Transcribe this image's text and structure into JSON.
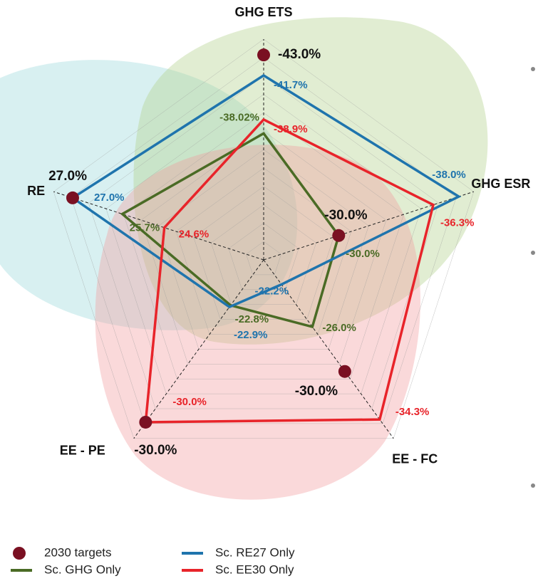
{
  "chart_data": {
    "type": "radar",
    "axes": [
      {
        "label": "GHG ETS",
        "lim": [
          -30,
          -44
        ]
      },
      {
        "label": "GHG ESR",
        "lim": [
          -25,
          -39
        ]
      },
      {
        "label": "EE - FC",
        "lim": [
          -20,
          -36
        ]
      },
      {
        "label": "EE - PE",
        "lim": [
          -20,
          -31
        ]
      },
      {
        "label": "RE",
        "lim": [
          22,
          27.5
        ]
      }
    ],
    "series": [
      {
        "name": "2030 targets",
        "color": "#7a1022",
        "style": "markers",
        "values": [
          -43.0,
          -30.0,
          -30.0,
          -30.0,
          27.0
        ],
        "value_labels": [
          "-43.0%",
          "-30.0%",
          "-30.0%",
          "-30.0%",
          "27.0%"
        ]
      },
      {
        "name": "Sc. GHG Only",
        "color": "#4a6b25",
        "style": "line",
        "values": [
          -38.02,
          -30.0,
          -26.0,
          -22.8,
          25.7
        ],
        "value_labels": [
          "-38.02%",
          "-30.0%",
          "-26.0%",
          "-22.8%",
          "25.7%"
        ]
      },
      {
        "name": "Sc. RE27 Only",
        "color": "#1f74ad",
        "style": "line",
        "values": [
          -41.7,
          -38.0,
          -22.2,
          -22.9,
          27.0
        ],
        "value_labels": [
          "-41.7%",
          "-38.0%",
          "-22.2%",
          "-22.9%",
          "27.0%"
        ]
      },
      {
        "name": "Sc. EE30 Only",
        "color": "#e8242a",
        "style": "line",
        "values": [
          -38.9,
          -36.3,
          -34.3,
          -30.0,
          24.6
        ],
        "value_labels": [
          "-38.9%",
          "-36.3%",
          "-34.3%",
          "-30.0%",
          "24.6%"
        ]
      }
    ],
    "grid": true
  }
}
